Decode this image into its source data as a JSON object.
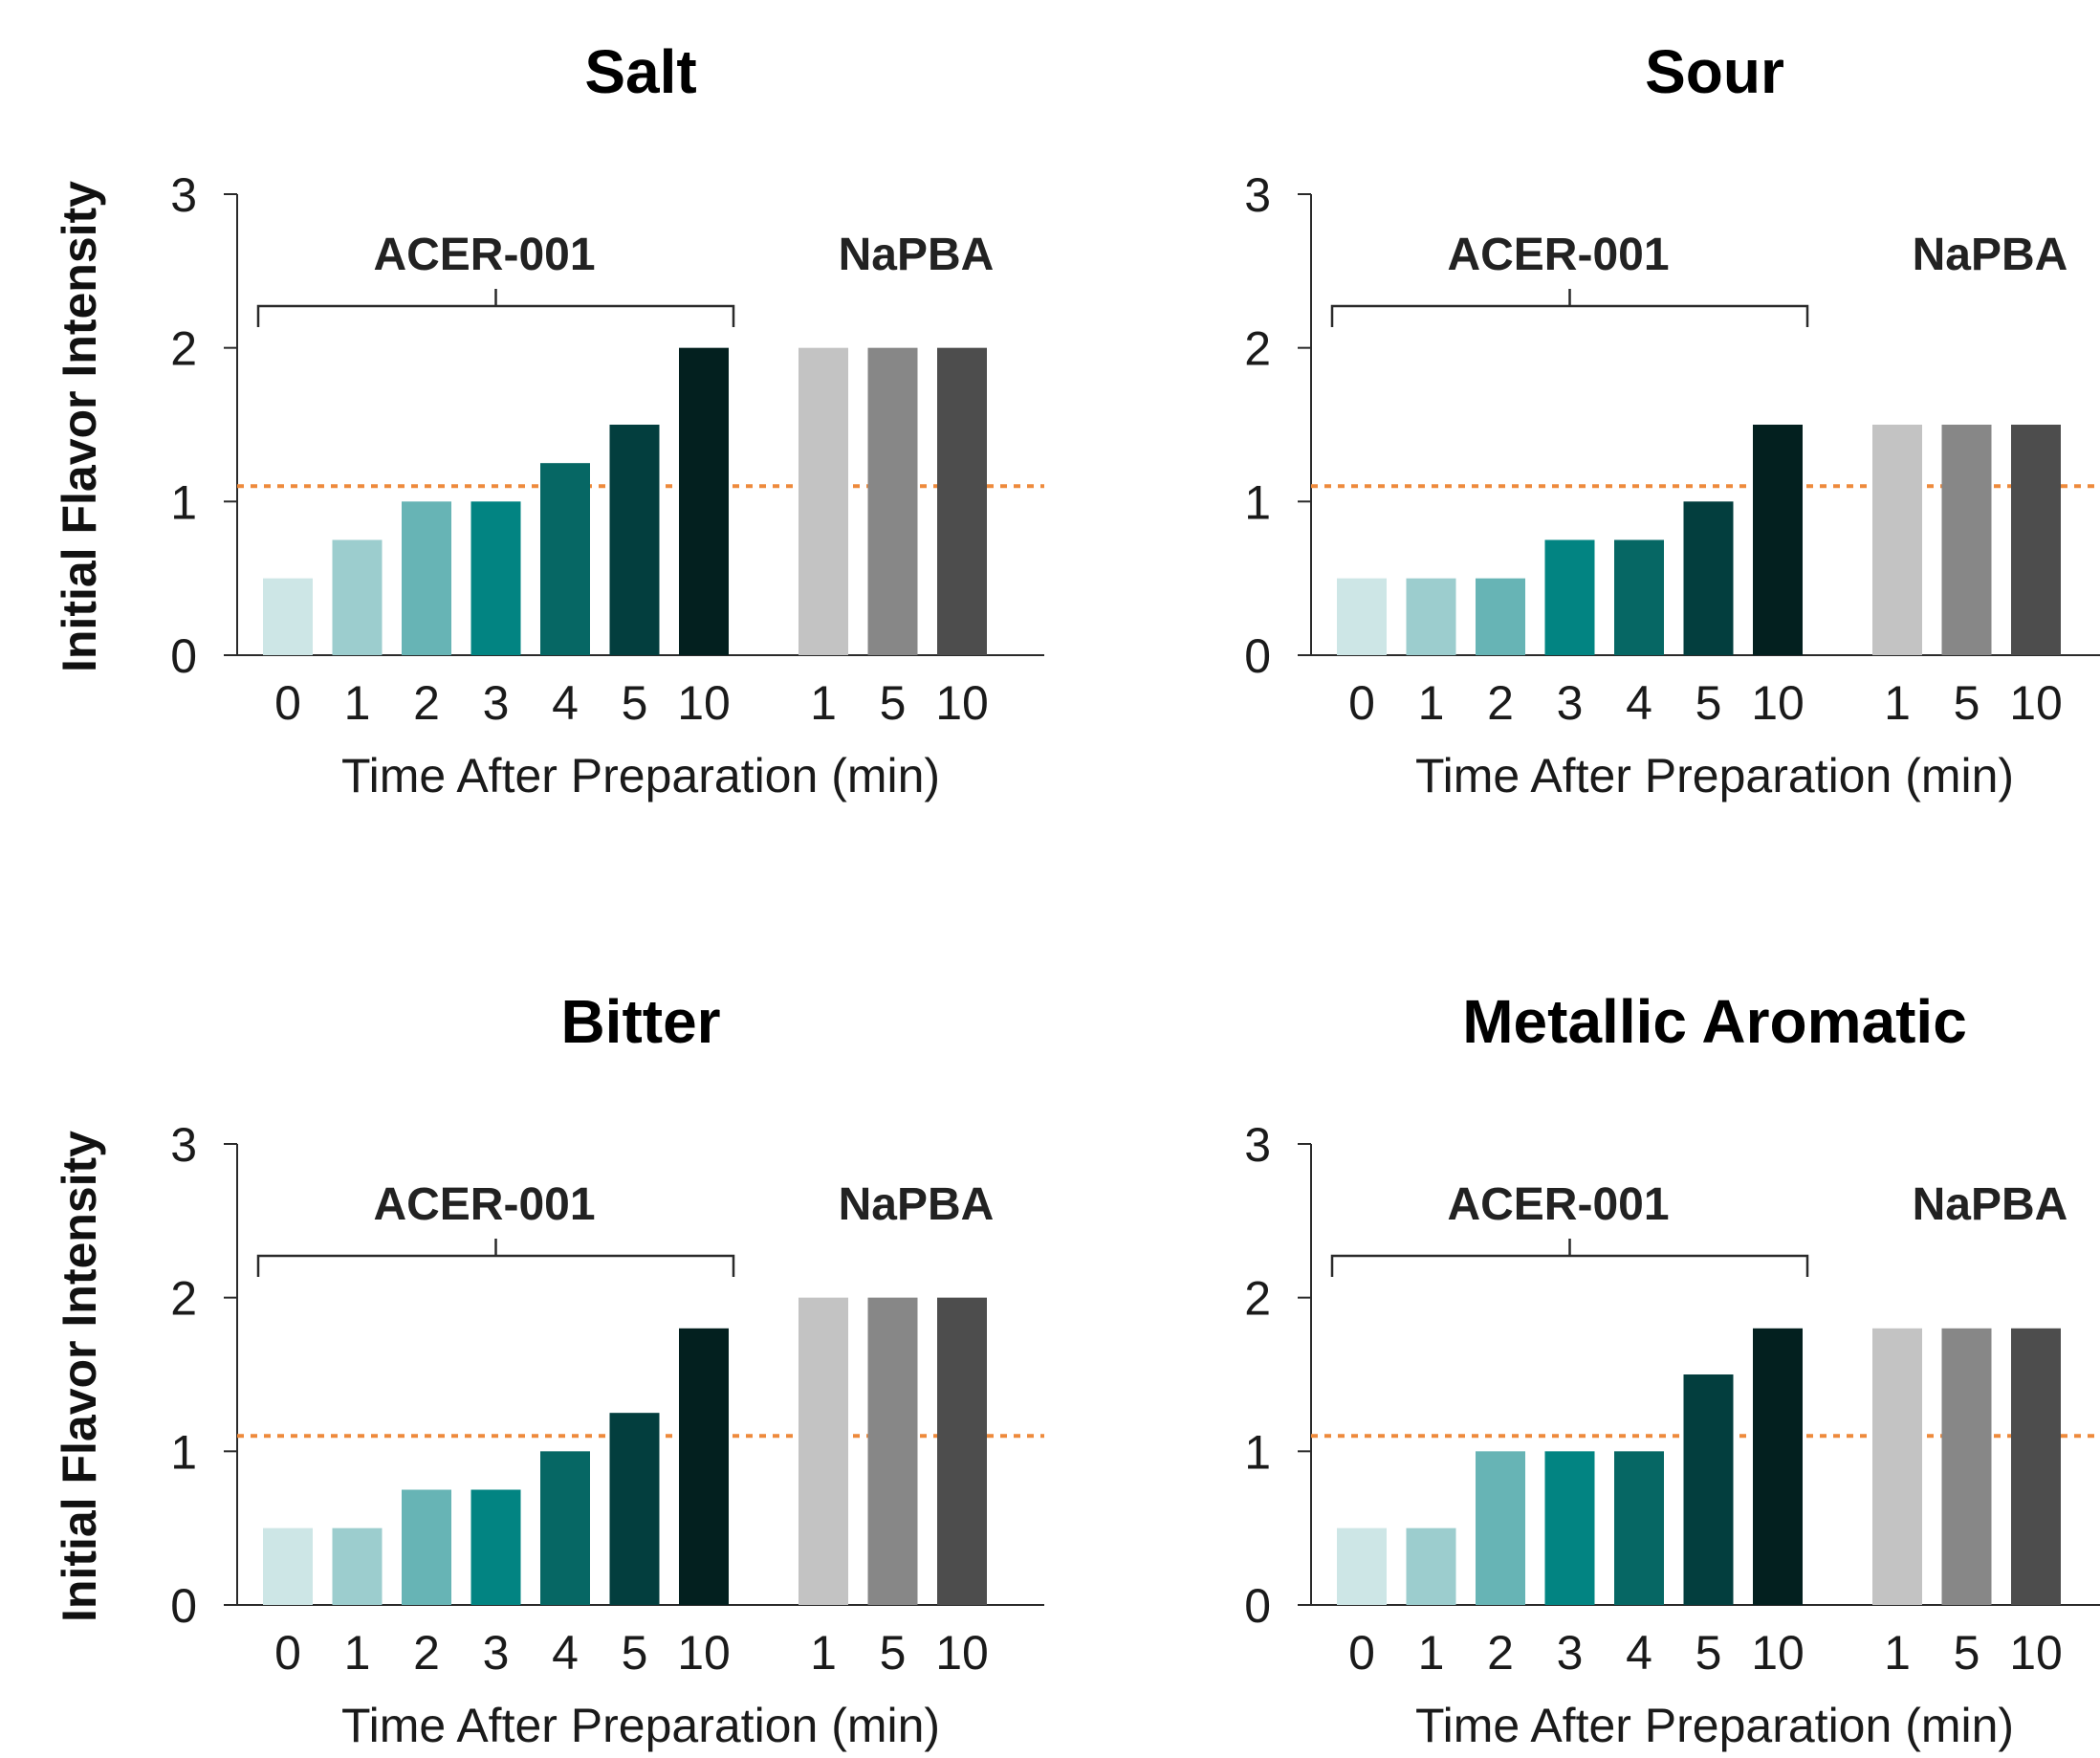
{
  "colors": {
    "acer": [
      "#cde6e6",
      "#9ccdce",
      "#67b4b5",
      "#028482",
      "#066764",
      "#033e3e",
      "#03201f"
    ],
    "napba": [
      "#c3c3c3",
      "#878787",
      "#4d4d4d"
    ],
    "reference_line": "#ee8a3c"
  },
  "chart_data": [
    {
      "type": "bar",
      "title": "Salt",
      "ylabel": "Initial Flavor Intensity",
      "xlabel": "Time After Preparation (min)",
      "ylim": [
        0,
        3
      ],
      "yticks": [
        "0",
        "1",
        "2",
        "3"
      ],
      "reference_line": 1.1,
      "groups": [
        {
          "name": "ACER-001",
          "categories": [
            "0",
            "1",
            "2",
            "3",
            "4",
            "5",
            "10"
          ],
          "values": [
            0.5,
            0.75,
            1.0,
            1.0,
            1.25,
            1.5,
            2.0
          ]
        },
        {
          "name": "NaPBA",
          "categories": [
            "1",
            "5",
            "10"
          ],
          "values": [
            2.0,
            2.0,
            2.0
          ]
        }
      ]
    },
    {
      "type": "bar",
      "title": "Sour",
      "ylabel": "",
      "xlabel": "Time After Preparation (min)",
      "ylim": [
        0,
        3
      ],
      "yticks": [
        "0",
        "1",
        "2",
        "3"
      ],
      "reference_line": 1.1,
      "groups": [
        {
          "name": "ACER-001",
          "categories": [
            "0",
            "1",
            "2",
            "3",
            "4",
            "5",
            "10"
          ],
          "values": [
            0.5,
            0.5,
            0.5,
            0.75,
            0.75,
            1.0,
            1.5
          ]
        },
        {
          "name": "NaPBA",
          "categories": [
            "1",
            "5",
            "10"
          ],
          "values": [
            1.5,
            1.5,
            1.5
          ]
        }
      ]
    },
    {
      "type": "bar",
      "title": "Bitter",
      "ylabel": "Initial Flavor Intensity",
      "xlabel": "Time After Preparation (min)",
      "ylim": [
        0,
        3
      ],
      "yticks": [
        "0",
        "1",
        "2",
        "3"
      ],
      "reference_line": 1.1,
      "groups": [
        {
          "name": "ACER-001",
          "categories": [
            "0",
            "1",
            "2",
            "3",
            "4",
            "5",
            "10"
          ],
          "values": [
            0.5,
            0.5,
            0.75,
            0.75,
            1.0,
            1.25,
            1.8
          ]
        },
        {
          "name": "NaPBA",
          "categories": [
            "1",
            "5",
            "10"
          ],
          "values": [
            2.0,
            2.0,
            2.0
          ]
        }
      ]
    },
    {
      "type": "bar",
      "title": "Metallic Aromatic",
      "ylabel": "",
      "xlabel": "Time After Preparation (min)",
      "ylim": [
        0,
        3
      ],
      "yticks": [
        "0",
        "1",
        "2",
        "3"
      ],
      "reference_line": 1.1,
      "groups": [
        {
          "name": "ACER-001",
          "categories": [
            "0",
            "1",
            "2",
            "3",
            "4",
            "5",
            "10"
          ],
          "values": [
            0.5,
            0.5,
            1.0,
            1.0,
            1.0,
            1.5,
            1.8
          ]
        },
        {
          "name": "NaPBA",
          "categories": [
            "1",
            "5",
            "10"
          ],
          "values": [
            1.8,
            1.8,
            1.8
          ]
        }
      ]
    }
  ]
}
